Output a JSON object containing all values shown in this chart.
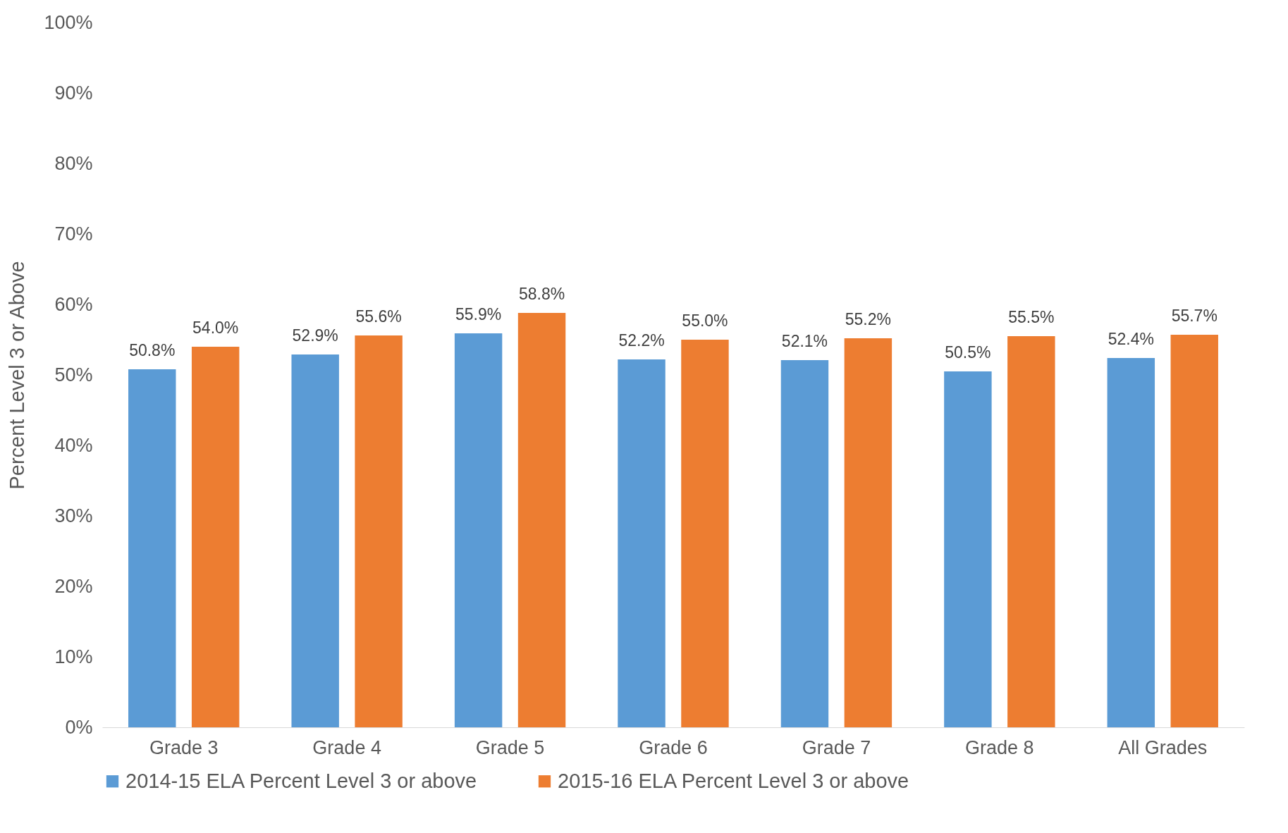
{
  "chart_data": {
    "type": "bar",
    "ylabel": "Percent Level 3 or Above",
    "categories": [
      "Grade 3",
      "Grade 4",
      "Grade 5",
      "Grade 6",
      "Grade 7",
      "Grade 8",
      "All Grades"
    ],
    "series": [
      {
        "name": "2014-15 ELA Percent Level 3 or above",
        "color": "#5b9bd5",
        "values": [
          50.8,
          52.9,
          55.9,
          52.2,
          52.1,
          50.5,
          52.4
        ],
        "value_labels": [
          "50.8%",
          "52.9%",
          "55.9%",
          "52.2%",
          "52.1%",
          "50.5%",
          "52.4%"
        ]
      },
      {
        "name": "2015-16 ELA Percent Level 3 or above",
        "color": "#ed7d31",
        "values": [
          54.0,
          55.6,
          58.8,
          55.0,
          55.2,
          55.5,
          55.7
        ],
        "value_labels": [
          "54.0%",
          "55.6%",
          "58.8%",
          "55.0%",
          "55.2%",
          "55.5%",
          "55.7%"
        ]
      }
    ],
    "ylim": [
      0,
      100
    ],
    "yticks": [
      {
        "value": 0,
        "label": "0%"
      },
      {
        "value": 10,
        "label": "10%"
      },
      {
        "value": 20,
        "label": "20%"
      },
      {
        "value": 30,
        "label": "30%"
      },
      {
        "value": 40,
        "label": "40%"
      },
      {
        "value": 50,
        "label": "50%"
      },
      {
        "value": 60,
        "label": "60%"
      },
      {
        "value": 70,
        "label": "70%"
      },
      {
        "value": 80,
        "label": "80%"
      },
      {
        "value": 90,
        "label": "90%"
      },
      {
        "value": 100,
        "label": "100%"
      }
    ],
    "grid": false,
    "legend": "bottom"
  }
}
